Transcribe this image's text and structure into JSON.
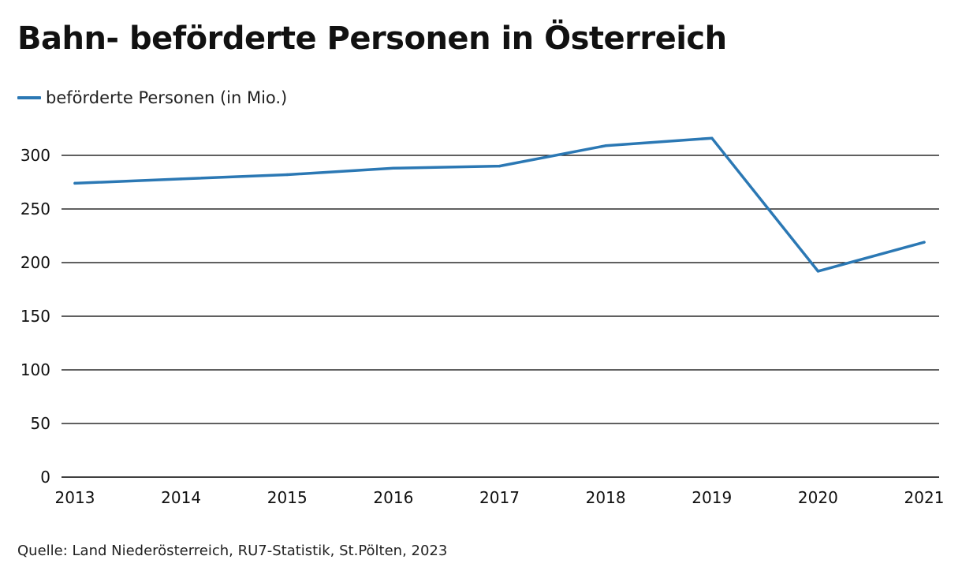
{
  "title": "Bahn- beförderte Personen in Österreich",
  "legend": {
    "label": "beförderte Personen (in Mio.)"
  },
  "source": "Quelle: Land Niederösterreich, RU7-Statistik, St.Pölten, 2023",
  "colors": {
    "series": "#2b78b4",
    "grid": "#000000",
    "text": "#111111"
  },
  "chart_data": {
    "type": "line",
    "title": "Bahn- beförderte Personen in Österreich",
    "xlabel": "",
    "ylabel": "",
    "x": [
      "2013",
      "2014",
      "2015",
      "2016",
      "2017",
      "2018",
      "2019",
      "2020",
      "2021"
    ],
    "series": [
      {
        "name": "beförderte Personen (in Mio.)",
        "values": [
          274,
          278,
          282,
          288,
          290,
          309,
          316,
          192,
          219
        ]
      }
    ],
    "ylim": [
      0,
      300
    ],
    "yticks": [
      0,
      50,
      100,
      150,
      200,
      250,
      300
    ],
    "grid": true,
    "legend_position": "top-left"
  }
}
